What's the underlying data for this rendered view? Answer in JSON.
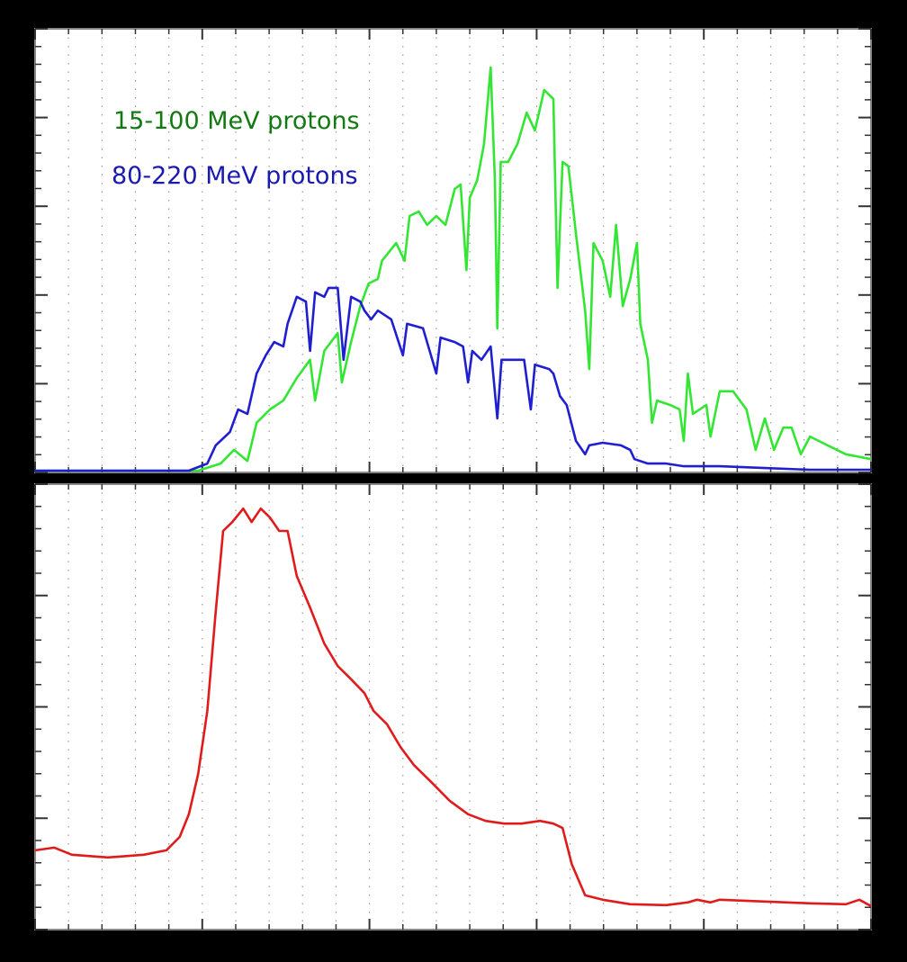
{
  "chart_data": [
    {
      "type": "line",
      "panel": "top",
      "xlim": [
        0,
        100
      ],
      "ylim": [
        0,
        100
      ],
      "grid": "vertical-dotted",
      "legend_placement": "top-left",
      "series": [
        {
          "name": "15-100 MeV protons",
          "color": "#33e633",
          "label_color": "#137a13",
          "x": [
            0,
            19.5,
            22.2,
            23.8,
            25.4,
            26.5,
            28.1,
            29.7,
            31.3,
            32.9,
            33.5,
            34.6,
            36.2,
            36.7,
            37.8,
            38.9,
            39.9,
            41.0,
            41.5,
            43.2,
            44.2,
            44.8,
            45.9,
            46.9,
            48.0,
            49.1,
            50.2,
            50.9,
            51.6,
            52.0,
            52.9,
            53.7,
            54.5,
            55.0,
            55.3,
            55.7,
            56.6,
            57.7,
            58.8,
            59.8,
            60.9,
            62.0,
            62.5,
            63.1,
            63.8,
            64.7,
            65.8,
            66.3,
            66.8,
            67.9,
            68.8,
            69.5,
            70.3,
            71.2,
            72.0,
            72.4,
            73.3,
            73.8,
            74.4,
            76.0,
            77.1,
            77.6,
            78.1,
            78.7,
            80.3,
            80.8,
            81.9,
            83.5,
            85.1,
            86.2,
            87.3,
            88.4,
            89.5,
            90.5,
            91.6,
            92.7,
            94.8,
            97.0,
            100
          ],
          "y": [
            0.4,
            0.4,
            2.0,
            5.1,
            2.6,
            11.2,
            14.2,
            16.2,
            21.3,
            25.4,
            16.2,
            27.4,
            31.4,
            20.3,
            29.4,
            37.5,
            42.6,
            43.6,
            47.7,
            51.7,
            47.7,
            57.8,
            58.8,
            55.8,
            57.8,
            55.8,
            63.9,
            64.9,
            45.6,
            61.9,
            65.9,
            74.0,
            91.3,
            65.9,
            32.5,
            70.0,
            70.0,
            74.0,
            81.1,
            77.1,
            86.2,
            84.2,
            41.6,
            70.0,
            69.0,
            53.8,
            36.5,
            23.3,
            51.7,
            47.7,
            39.6,
            55.8,
            37.5,
            43.6,
            51.7,
            33.5,
            25.4,
            11.2,
            16.2,
            15.2,
            14.2,
            7.1,
            22.3,
            13.2,
            15.2,
            8.1,
            18.3,
            18.3,
            14.2,
            5.1,
            12.2,
            5.1,
            10.1,
            10.1,
            4.1,
            8.1,
            6.1,
            4.1,
            3.0
          ]
        },
        {
          "name": "80-220 MeV protons",
          "color": "#1f1fd0",
          "label_color": "#1a1ab0",
          "x": [
            0,
            18.4,
            20.6,
            21.6,
            23.3,
            24.3,
            25.4,
            26.5,
            27.6,
            28.6,
            29.7,
            30.2,
            31.3,
            32.4,
            32.9,
            33.5,
            34.6,
            35.1,
            36.2,
            36.9,
            37.8,
            38.9,
            39.4,
            40.2,
            41.0,
            42.6,
            44.0,
            44.5,
            46.4,
            48.0,
            48.5,
            50.2,
            51.2,
            51.8,
            52.3,
            53.4,
            54.5,
            55.3,
            55.8,
            57.2,
            58.5,
            59.3,
            59.8,
            61.5,
            62.0,
            62.8,
            63.6,
            64.7,
            65.8,
            66.3,
            67.9,
            70.1,
            71.2,
            71.7,
            73.3,
            75.5,
            77.6,
            81.9,
            87.3,
            92.7,
            100
          ],
          "y": [
            0.4,
            0.4,
            2.0,
            6.1,
            9.1,
            14.2,
            13.2,
            22.3,
            26.4,
            29.4,
            28.4,
            33.5,
            39.6,
            38.5,
            27.4,
            40.6,
            39.6,
            41.6,
            41.6,
            25.4,
            39.6,
            38.5,
            36.5,
            34.5,
            36.5,
            34.5,
            26.4,
            33.5,
            32.5,
            22.3,
            30.4,
            29.4,
            28.4,
            20.3,
            27.4,
            25.4,
            28.4,
            12.2,
            25.4,
            25.4,
            25.4,
            14.2,
            24.3,
            23.3,
            22.3,
            17.2,
            15.2,
            7.1,
            4.1,
            6.1,
            6.7,
            6.1,
            5.1,
            3.0,
            2.0,
            2.0,
            1.4,
            1.4,
            1.0,
            0.6,
            0.6
          ]
        }
      ]
    },
    {
      "type": "line",
      "panel": "bottom",
      "xlim": [
        0,
        100
      ],
      "ylim": [
        0,
        100
      ],
      "grid": "vertical-dotted",
      "series": [
        {
          "color": "#e01b1b",
          "x": [
            0,
            2.3,
            4.4,
            8.7,
            13.0,
            15.7,
            17.3,
            18.4,
            19.5,
            20.6,
            21.6,
            22.5,
            23.6,
            24.9,
            25.9,
            27.0,
            28.1,
            29.2,
            30.2,
            31.3,
            32.9,
            34.6,
            36.2,
            37.8,
            39.4,
            40.5,
            42.1,
            43.7,
            45.3,
            47.5,
            49.6,
            51.8,
            53.9,
            56.1,
            58.2,
            60.4,
            62.0,
            63.1,
            64.2,
            65.8,
            67.9,
            71.2,
            75.5,
            78.1,
            79.2,
            80.8,
            81.9,
            87.3,
            92.7,
            97.0,
            98.6,
            100
          ],
          "y": [
            17.8,
            18.4,
            16.8,
            16.2,
            16.8,
            17.8,
            20.8,
            25.9,
            34.9,
            49.1,
            71.3,
            89.5,
            91.5,
            94.5,
            91.5,
            94.5,
            92.5,
            89.5,
            89.5,
            79.4,
            72.3,
            64.2,
            59.2,
            56.2,
            53.1,
            49.1,
            46.1,
            41.0,
            37.0,
            32.9,
            28.9,
            25.9,
            24.4,
            23.8,
            23.8,
            24.4,
            23.8,
            22.8,
            14.7,
            7.7,
            6.7,
            5.7,
            5.5,
            6.1,
            6.7,
            6.1,
            6.7,
            6.3,
            5.9,
            5.7,
            6.7,
            5.3
          ]
        }
      ]
    }
  ]
}
